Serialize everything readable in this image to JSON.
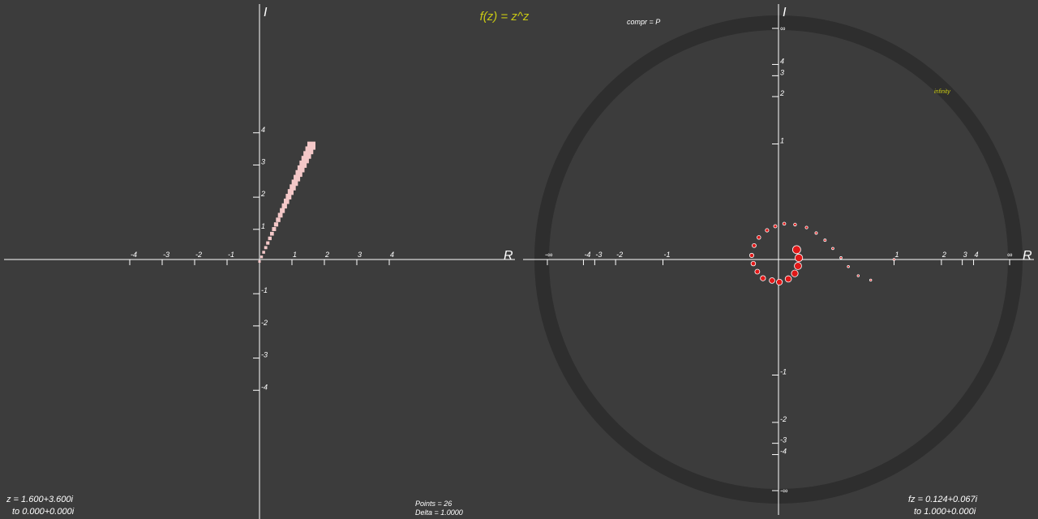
{
  "title": "f(z) = z^z",
  "compression": "compr = P",
  "infinity_label": "infinity",
  "left_info": {
    "z": "z = 1.600+3.600i",
    "to": "to  0.000+0.000i"
  },
  "center_info": {
    "points": "Points  = 26",
    "delta": "Delta  = 1.0000"
  },
  "right_info": {
    "fz": "fz = 0.124+0.067i",
    "to": "to  1.000+0.000i"
  },
  "chart_data": [
    {
      "type": "scatter",
      "xlabel": "R",
      "ylabel": "I",
      "color": "#f4c8c8",
      "marker": "square",
      "xlim": [
        -7.875,
        7.875
      ],
      "ylim": [
        -8,
        8
      ],
      "xticks": [
        -4,
        -3,
        -2,
        -1,
        1,
        2,
        3,
        4
      ],
      "yticks": [
        -4,
        -3,
        -2,
        -1,
        1,
        2,
        3,
        4
      ],
      "x": [
        0,
        0.064,
        0.128,
        0.192,
        0.256,
        0.32,
        0.384,
        0.448,
        0.512,
        0.576,
        0.64,
        0.704,
        0.768,
        0.832,
        0.896,
        0.96,
        1.024,
        1.088,
        1.152,
        1.216,
        1.28,
        1.344,
        1.408,
        1.472,
        1.536,
        1.6
      ],
      "values": [
        0,
        0.144,
        0.288,
        0.432,
        0.576,
        0.72,
        0.864,
        1.008,
        1.152,
        1.296,
        1.44,
        1.584,
        1.728,
        1.872,
        2.016,
        2.16,
        2.304,
        2.448,
        2.592,
        2.736,
        2.88,
        3.024,
        3.168,
        3.312,
        3.456,
        3.6
      ]
    },
    {
      "type": "scatter",
      "scale": "atan",
      "xlabel": "R",
      "ylabel": "I",
      "color": "#e01818",
      "marker": "circle",
      "xticks": [
        -4,
        -3,
        -2,
        -1,
        1,
        2,
        3,
        4
      ],
      "yticks": [
        -4,
        -3,
        -2,
        -1,
        1,
        2,
        3,
        4
      ],
      "x_inf_labels": [
        "-∞",
        "∞"
      ],
      "y_inf_labels": [
        "-∞",
        "∞"
      ],
      "x": [
        1,
        0.724,
        0.602,
        0.514,
        0.452,
        0.387,
        0.327,
        0.262,
        0.193,
        0.113,
        0.039,
        -0.022,
        -0.078,
        -0.134,
        -0.167,
        -0.184,
        -0.173,
        -0.145,
        -0.106,
        -0.044,
        0.006,
        0.067,
        0.111,
        0.133,
        0.139,
        0.124
      ],
      "values": [
        0,
        -0.141,
        -0.111,
        -0.048,
        0.012,
        0.075,
        0.132,
        0.182,
        0.221,
        0.242,
        0.248,
        0.23,
        0.201,
        0.151,
        0.095,
        0.028,
        -0.028,
        -0.083,
        -0.128,
        -0.144,
        -0.155,
        -0.133,
        -0.095,
        -0.044,
        0.011,
        0.067
      ]
    }
  ]
}
